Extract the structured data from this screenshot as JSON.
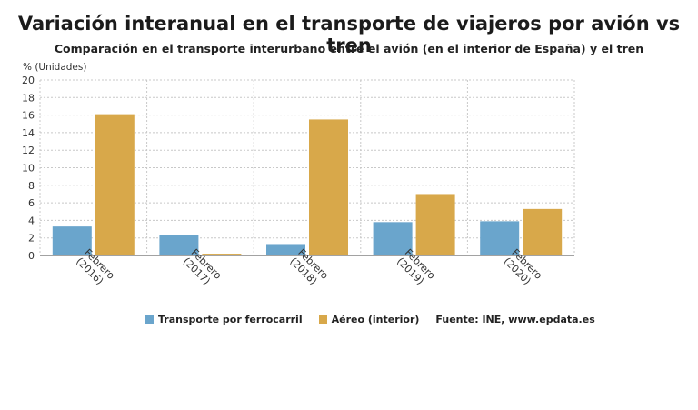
{
  "header": {
    "title": "Variación interanual en el transporte de viajeros por avión vs tren",
    "subtitle": "Comparación en el transporte interurbano entre el avión (en el interior de España) y el tren",
    "unit_label": "% (Unidades)"
  },
  "legend": {
    "source": "Fuente: INE, www.epdata.es"
  },
  "colors": {
    "rail": "#6aa5cc",
    "air": "#d8a84a",
    "grid": "#c8c8c8"
  },
  "chart_data": {
    "type": "bar",
    "categories": [
      [
        "Febrero",
        "(2016)"
      ],
      [
        "Febrero",
        "(2017)"
      ],
      [
        "Febrero",
        "(2018)"
      ],
      [
        "Febrero",
        "(2019)"
      ],
      [
        "Febrero",
        "(2020)"
      ]
    ],
    "series": [
      {
        "name": "Transporte por ferrocarril",
        "values": [
          3.3,
          2.3,
          1.3,
          3.8,
          3.9
        ]
      },
      {
        "name": "Aéreo (interior)",
        "values": [
          16.1,
          0.2,
          15.5,
          7.0,
          5.3
        ]
      }
    ],
    "ylabel": "% (Unidades)",
    "ylim": [
      0,
      20
    ],
    "yticks": [
      0,
      2,
      4,
      6,
      8,
      10,
      12,
      14,
      16,
      18,
      20
    ],
    "grid": true,
    "legend_position": "bottom"
  }
}
